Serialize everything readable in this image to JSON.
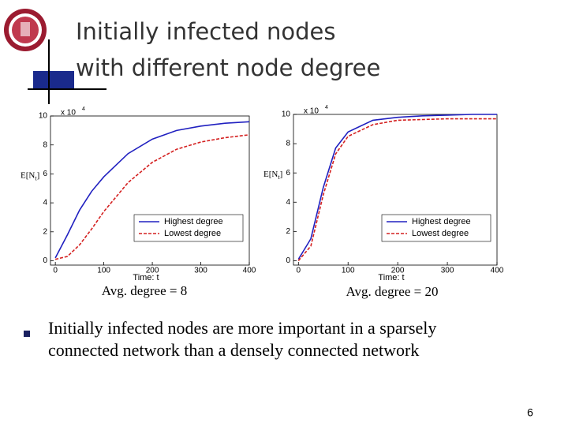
{
  "slide": {
    "title": [
      "Initially infected nodes",
      "with different node degree"
    ],
    "bullet": [
      "Initially infected nodes are more important in a sparsely",
      "connected network than a densely connected network"
    ],
    "page": "6"
  },
  "chart_data": [
    {
      "type": "line",
      "caption": "Avg. degree = 8",
      "xlabel": "Time: t",
      "ylabel": [
        "E[N",
        "t",
        "]"
      ],
      "multiplier": {
        "base": "x 10",
        "exponent": "4"
      },
      "x": [
        0,
        25,
        50,
        75,
        100,
        150,
        200,
        250,
        300,
        350,
        400
      ],
      "xlim": [
        -10,
        400
      ],
      "xticks": [
        0,
        100,
        200,
        300,
        400
      ],
      "ylim": [
        -0.3,
        10
      ],
      "yticks": [
        0,
        2,
        4,
        6,
        8,
        10
      ],
      "legend": "lower right",
      "series": [
        {
          "name": "Highest degree",
          "color": "#2020c0",
          "style": "solid",
          "values": [
            0.2,
            1.8,
            3.5,
            4.8,
            5.8,
            7.4,
            8.4,
            9.0,
            9.3,
            9.5,
            9.6
          ]
        },
        {
          "name": "Lowest degree",
          "color": "#d42020",
          "style": "dashed",
          "values": [
            0.1,
            0.3,
            1.1,
            2.2,
            3.4,
            5.4,
            6.8,
            7.7,
            8.2,
            8.5,
            8.7
          ]
        }
      ]
    },
    {
      "type": "line",
      "caption": "Avg. degree = 20",
      "xlabel": "Time: t",
      "ylabel": [
        "E[N",
        "t",
        "]"
      ],
      "multiplier": {
        "base": "x 10",
        "exponent": "4"
      },
      "x": [
        0,
        25,
        50,
        75,
        100,
        150,
        200,
        250,
        300,
        350,
        400
      ],
      "xlim": [
        -10,
        400
      ],
      "xticks": [
        0,
        100,
        200,
        300,
        400
      ],
      "ylim": [
        -0.3,
        10
      ],
      "yticks": [
        0,
        2,
        4,
        6,
        8,
        10
      ],
      "legend": "lower right",
      "series": [
        {
          "name": "Highest degree",
          "color": "#2020c0",
          "style": "solid",
          "values": [
            0.1,
            1.5,
            5.0,
            7.7,
            8.8,
            9.6,
            9.8,
            9.9,
            9.95,
            10.0,
            10.0
          ]
        },
        {
          "name": "Lowest degree",
          "color": "#d42020",
          "style": "dashed",
          "values": [
            0.0,
            1.0,
            4.5,
            7.3,
            8.5,
            9.3,
            9.6,
            9.65,
            9.7,
            9.7,
            9.7
          ]
        }
      ]
    }
  ]
}
